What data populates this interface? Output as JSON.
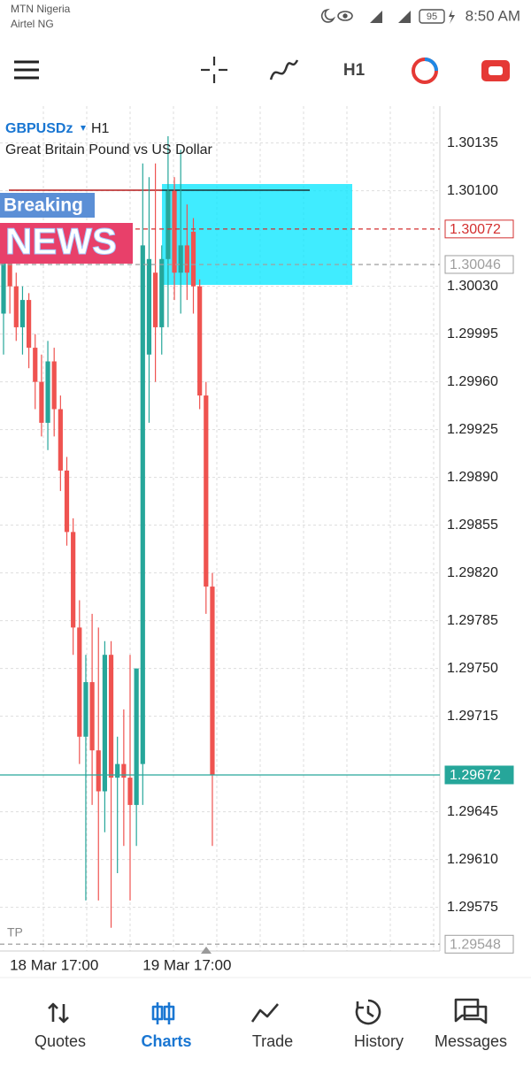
{
  "status_bar": {
    "carrier_1": "MTN Nigeria",
    "carrier_2": "Airtel NG",
    "battery": "95",
    "time": "8:50 AM"
  },
  "toolbar": {
    "timeframe": "H1"
  },
  "chart_data": {
    "type": "candlestick",
    "symbol": "GBPUSDz",
    "timeframe": "H1",
    "description": "Great Britain Pound vs US Dollar",
    "categories": [
      null,
      null,
      null,
      null,
      null,
      null,
      null,
      null,
      "18 Mar 17:00",
      null,
      null,
      null,
      null,
      null,
      null,
      null,
      null,
      null,
      null,
      null,
      null,
      null,
      null,
      null,
      null,
      null,
      null,
      null,
      null,
      "19 Mar 17:00",
      null,
      null,
      null,
      null
    ],
    "open": [
      1.3001,
      1.3005,
      1.3003,
      1.3,
      1.3002,
      1.29985,
      1.2996,
      1.2993,
      1.29975,
      1.2994,
      1.29895,
      1.2985,
      1.2978,
      1.297,
      1.2974,
      1.2969,
      1.2966,
      1.2976,
      1.2967,
      1.2968,
      1.2967,
      1.2965,
      1.2968,
      1.2998,
      1.3004,
      1.3,
      1.3005,
      1.301,
      1.3004,
      1.3006,
      1.3007,
      1.3003,
      1.2995,
      1.2981
    ],
    "high": [
      1.3006,
      1.30065,
      1.3004,
      1.3003,
      1.30025,
      1.29995,
      1.2998,
      1.2999,
      1.29985,
      1.2995,
      1.29905,
      1.2986,
      1.298,
      1.2976,
      1.2979,
      1.2978,
      1.2977,
      1.2977,
      1.297,
      1.2972,
      1.2976,
      1.2975,
      1.3012,
      1.3011,
      1.3012,
      1.3006,
      1.3014,
      1.3011,
      1.3013,
      1.3009,
      1.3008,
      1.30035,
      1.2996,
      1.2982
    ],
    "low": [
      1.2998,
      1.3001,
      1.2999,
      1.2998,
      1.2997,
      1.2994,
      1.2992,
      1.2991,
      1.2992,
      1.2988,
      1.2984,
      1.2976,
      1.2968,
      1.2958,
      1.2965,
      1.2958,
      1.2963,
      1.2956,
      1.296,
      1.2962,
      1.2958,
      1.2962,
      1.2965,
      1.2993,
      1.2996,
      1.2998,
      1.3,
      1.3002,
      1.3001,
      1.3002,
      1.3001,
      1.2994,
      1.2979,
      1.2962
    ],
    "close": [
      1.3005,
      1.3003,
      1.3,
      1.3002,
      1.29985,
      1.2996,
      1.2993,
      1.29975,
      1.2994,
      1.29895,
      1.2985,
      1.2978,
      1.297,
      1.2974,
      1.2969,
      1.2966,
      1.2976,
      1.2967,
      1.2968,
      1.2967,
      1.2965,
      1.2975,
      1.3006,
      1.3005,
      1.3,
      1.3005,
      1.301,
      1.3004,
      1.3006,
      1.3004,
      1.3003,
      1.2995,
      1.2981,
      1.29672
    ],
    "up_color": "#26a69a",
    "down_color": "#ef5350",
    "ylim": [
      1.29543,
      1.30162
    ],
    "yticks": [
      {
        "value": 1.30135,
        "label": "1.30135"
      },
      {
        "value": 1.301,
        "label": "1.30100"
      },
      {
        "value": 1.3003,
        "label": "1.30030"
      },
      {
        "value": 1.29995,
        "label": "1.29995"
      },
      {
        "value": 1.2996,
        "label": "1.29960"
      },
      {
        "value": 1.29925,
        "label": "1.29925"
      },
      {
        "value": 1.2989,
        "label": "1.29890"
      },
      {
        "value": 1.29855,
        "label": "1.29855"
      },
      {
        "value": 1.2982,
        "label": "1.29820"
      },
      {
        "value": 1.29785,
        "label": "1.29785"
      },
      {
        "value": 1.2975,
        "label": "1.29750"
      },
      {
        "value": 1.29715,
        "label": "1.29715"
      },
      {
        "value": 1.29645,
        "label": "1.29645"
      },
      {
        "value": 1.2961,
        "label": "1.29610"
      },
      {
        "value": 1.29575,
        "label": "1.29575"
      }
    ],
    "levels": [
      {
        "value": 1.30072,
        "color": "#d32f2f",
        "style": "dashed"
      },
      {
        "value": 1.30046,
        "color": "#9e9e9e",
        "style": "dashed"
      },
      {
        "value": 1.29672,
        "color": "#26a69a",
        "style": "solid"
      },
      {
        "value": 1.29548,
        "color": "#9e9e9e",
        "style": "dashed"
      }
    ],
    "annotation": "TP",
    "grid": true
  },
  "overlay": {
    "line1": "Breaking",
    "line2": "NEWS"
  },
  "bottom_nav": {
    "items": [
      "Quotes",
      "Charts",
      "Trade",
      "History",
      "Messages"
    ],
    "active": 1
  }
}
